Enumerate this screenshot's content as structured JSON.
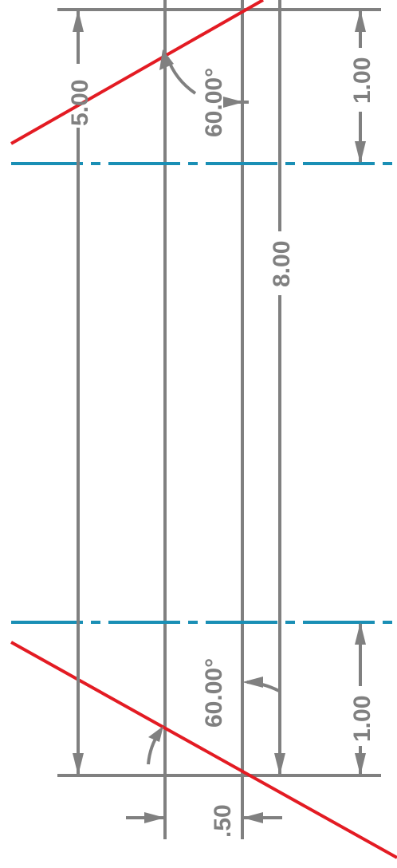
{
  "drawing": {
    "colors": {
      "dimension": "#808080",
      "cut_line": "#e31b23",
      "center_line": "#1a8fb5",
      "background": "#ffffff"
    },
    "dimensions": {
      "overall_length": "5.00",
      "inner_length": "8.00",
      "top_offset": "1.00",
      "bottom_offset": "1.00",
      "top_angle": "60.00°",
      "bottom_angle": "60.00°",
      "thickness": ".50"
    }
  }
}
